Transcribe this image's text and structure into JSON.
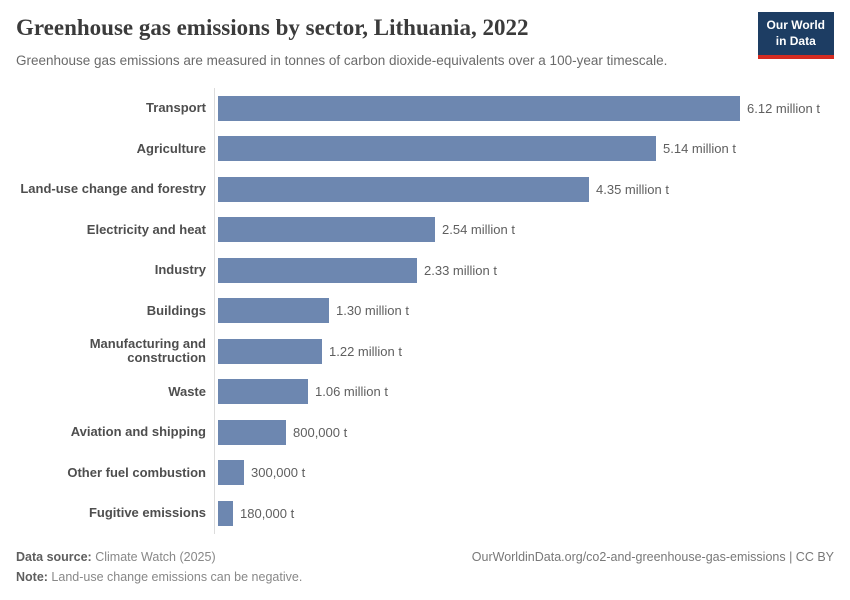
{
  "chart_data": {
    "type": "bar",
    "orientation": "horizontal",
    "title": "Greenhouse gas emissions by sector, Lithuania, 2022",
    "subtitle": "Greenhouse gas emissions are measured in tonnes of carbon dioxide-equivalents over a 100-year timescale.",
    "categories": [
      "Transport",
      "Agriculture",
      "Land-use change and forestry",
      "Electricity and heat",
      "Industry",
      "Buildings",
      "Manufacturing and construction",
      "Waste",
      "Aviation and shipping",
      "Other fuel combustion",
      "Fugitive emissions"
    ],
    "values": [
      6120000,
      5140000,
      4350000,
      2540000,
      2330000,
      1300000,
      1220000,
      1060000,
      800000,
      300000,
      180000
    ],
    "value_labels": [
      "6.12 million t",
      "5.14 million t",
      "4.35 million t",
      "2.54 million t",
      "2.33 million t",
      "1.30 million t",
      "1.22 million t",
      "1.06 million t",
      "800,000 t",
      "300,000 t",
      "180,000 t"
    ],
    "unit": "tonnes of carbon dioxide-equivalents",
    "xlim": [
      0,
      6120000
    ],
    "grid": "off",
    "bar_color": "#6d87b0",
    "legend": "none"
  },
  "logo": {
    "line1": "Our World",
    "line2": "in Data",
    "bg_color": "#1d3d63",
    "accent_color": "#d42b21"
  },
  "footer": {
    "datasource_label": "Data source:",
    "datasource_value": " Climate Watch (2025)",
    "note_label": "Note:",
    "note_value": " Land-use change emissions can be negative.",
    "link": "OurWorldinData.org/co2-and-greenhouse-gas-emissions | CC BY"
  }
}
